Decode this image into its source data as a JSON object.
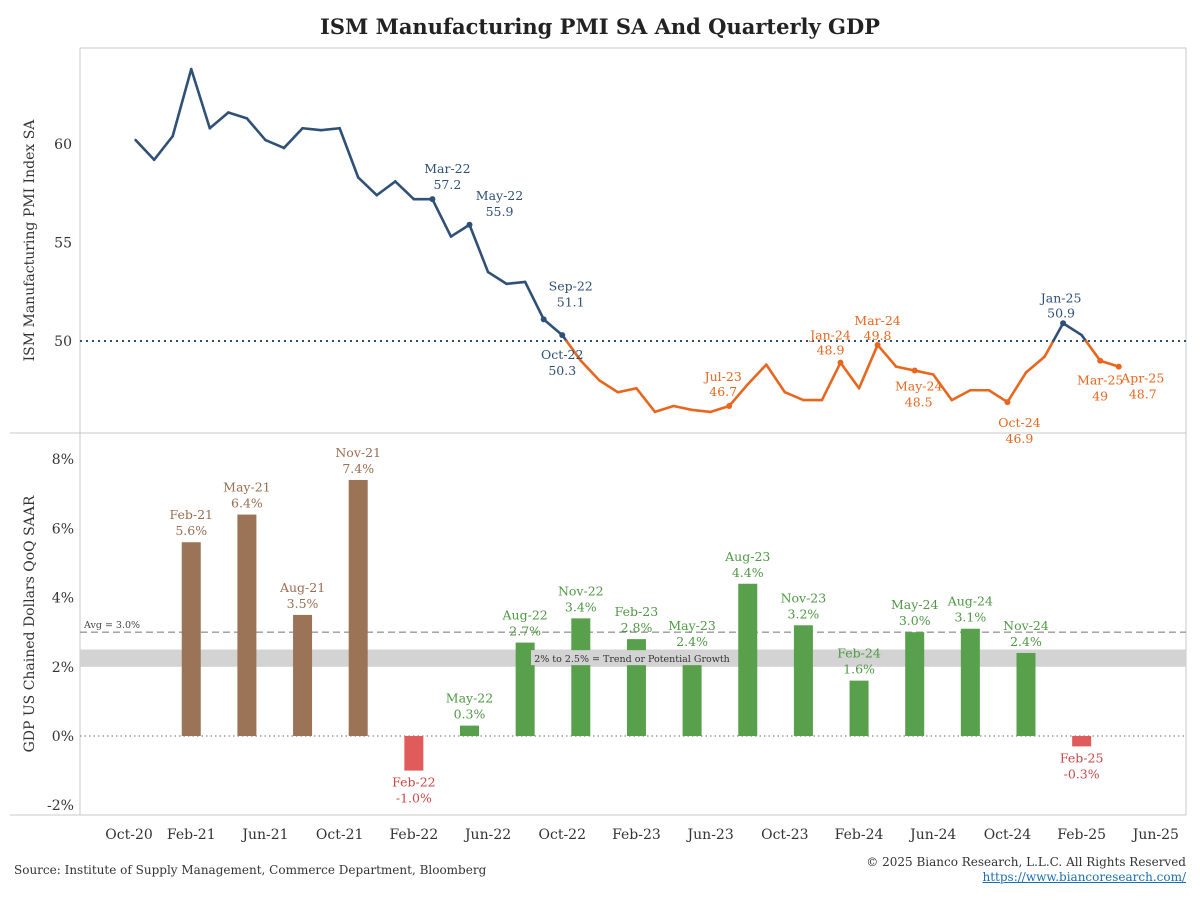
{
  "title": "ISM Manufacturing PMI SA And Quarterly GDP",
  "footer": {
    "source": "Source: Institute of Supply Management, Commerce Department, Bloomberg",
    "copyright": "© 2025 Bianco Research, L.L.C. All Rights Reserved",
    "url": "https://www.biancoresearch.com/"
  },
  "colors": {
    "pmi_above": "#2f5077",
    "pmi_below": "#e8671f",
    "gdp_early": "#9b7458",
    "gdp_late": "#58a04c",
    "gdp_negative": "#e05c5c",
    "reference_line": "#2f5077",
    "band": "#d3d3d3"
  },
  "chart_data": [
    {
      "type": "line",
      "ylabel": "ISM Manufacturing PMI Index SA",
      "ylim": [
        45,
        64.5
      ],
      "yticks": [
        50,
        55,
        60
      ],
      "reference_line": 50,
      "x": [
        "2020-11",
        "2020-12",
        "2021-01",
        "2021-02",
        "2021-03",
        "2021-04",
        "2021-05",
        "2021-06",
        "2021-07",
        "2021-08",
        "2021-09",
        "2021-10",
        "2021-11",
        "2021-12",
        "2022-01",
        "2022-02",
        "2022-03",
        "2022-04",
        "2022-05",
        "2022-06",
        "2022-07",
        "2022-08",
        "2022-09",
        "2022-10",
        "2022-11",
        "2022-12",
        "2023-01",
        "2023-02",
        "2023-03",
        "2023-04",
        "2023-05",
        "2023-06",
        "2023-07",
        "2023-08",
        "2023-09",
        "2023-10",
        "2023-11",
        "2023-12",
        "2024-01",
        "2024-02",
        "2024-03",
        "2024-04",
        "2024-05",
        "2024-06",
        "2024-07",
        "2024-08",
        "2024-09",
        "2024-10",
        "2024-11",
        "2024-12",
        "2025-01",
        "2025-02",
        "2025-03",
        "2025-04"
      ],
      "values": [
        60.2,
        59.2,
        60.4,
        63.8,
        60.8,
        61.6,
        61.3,
        60.2,
        59.8,
        60.8,
        60.7,
        60.8,
        58.3,
        57.4,
        58.1,
        57.2,
        57.2,
        55.3,
        55.9,
        53.5,
        52.9,
        53.0,
        51.1,
        50.3,
        49.0,
        48.0,
        47.4,
        47.6,
        46.4,
        46.7,
        46.5,
        46.4,
        46.7,
        47.8,
        48.8,
        47.4,
        47.0,
        47.0,
        48.9,
        47.6,
        49.8,
        48.7,
        48.5,
        48.3,
        47.0,
        47.5,
        47.5,
        46.9,
        48.4,
        49.2,
        50.9,
        50.3,
        49.0,
        48.7
      ],
      "annotations": [
        {
          "x": "2022-03",
          "month": "Mar-22",
          "value": "57.2"
        },
        {
          "x": "2022-05",
          "month": "May-22",
          "value": "55.9"
        },
        {
          "x": "2022-09",
          "month": "Sep-22",
          "value": "51.1"
        },
        {
          "x": "2022-10",
          "month": "Oct-22",
          "value": "50.3"
        },
        {
          "x": "2023-07",
          "month": "Jul-23",
          "value": "46.7"
        },
        {
          "x": "2024-01",
          "month": "Jan-24",
          "value": "48.9"
        },
        {
          "x": "2024-03",
          "month": "Mar-24",
          "value": "49.8"
        },
        {
          "x": "2024-05",
          "month": "May-24",
          "value": "48.5"
        },
        {
          "x": "2024-10",
          "month": "Oct-24",
          "value": "46.9"
        },
        {
          "x": "2025-01",
          "month": "Jan-25",
          "value": "50.9"
        },
        {
          "x": "2025-03",
          "month": "Mar-25",
          "value": "49"
        },
        {
          "x": "2025-04",
          "month": "Apr-25",
          "value": "48.7"
        }
      ]
    },
    {
      "type": "bar",
      "ylabel": "GDP US Chained Dollars QoQ SAAR",
      "ylim": [
        -2.2,
        8.7
      ],
      "yticks": [
        "-2%",
        "0%",
        "2%",
        "4%",
        "6%",
        "8%"
      ],
      "ytick_values": [
        -2,
        0,
        2,
        4,
        6,
        8
      ],
      "average": {
        "value": 3.0,
        "label": "Avg = 3.0%"
      },
      "band": {
        "from": 2.0,
        "to": 2.5,
        "label": "2% to 2.5% = Trend or Potential Growth"
      },
      "bars": [
        {
          "x": "2021-02",
          "month": "Feb-21",
          "value": 5.6,
          "label": "5.6%"
        },
        {
          "x": "2021-05",
          "month": "May-21",
          "value": 6.4,
          "label": "6.4%"
        },
        {
          "x": "2021-08",
          "month": "Aug-21",
          "value": 3.5,
          "label": "3.5%"
        },
        {
          "x": "2021-11",
          "month": "Nov-21",
          "value": 7.4,
          "label": "7.4%"
        },
        {
          "x": "2022-02",
          "month": "Feb-22",
          "value": -1.0,
          "label": "-1.0%"
        },
        {
          "x": "2022-05",
          "month": "May-22",
          "value": 0.3,
          "label": "0.3%"
        },
        {
          "x": "2022-08",
          "month": "Aug-22",
          "value": 2.7,
          "label": "2.7%"
        },
        {
          "x": "2022-11",
          "month": "Nov-22",
          "value": 3.4,
          "label": "3.4%"
        },
        {
          "x": "2023-02",
          "month": "Feb-23",
          "value": 2.8,
          "label": "2.8%"
        },
        {
          "x": "2023-05",
          "month": "May-23",
          "value": 2.4,
          "label": "2.4%"
        },
        {
          "x": "2023-08",
          "month": "Aug-23",
          "value": 4.4,
          "label": "4.4%"
        },
        {
          "x": "2023-11",
          "month": "Nov-23",
          "value": 3.2,
          "label": "3.2%"
        },
        {
          "x": "2024-02",
          "month": "Feb-24",
          "value": 1.6,
          "label": "1.6%"
        },
        {
          "x": "2024-05",
          "month": "May-24",
          "value": 3.0,
          "label": "3.0%"
        },
        {
          "x": "2024-08",
          "month": "Aug-24",
          "value": 3.1,
          "label": "3.1%"
        },
        {
          "x": "2024-11",
          "month": "Nov-24",
          "value": 2.4,
          "label": "2.4%"
        },
        {
          "x": "2025-02",
          "month": "Feb-25",
          "value": -0.3,
          "label": "-0.3%"
        }
      ]
    }
  ],
  "x_axis": {
    "ticks": [
      {
        "x": "2020-10",
        "label": "Oct-20"
      },
      {
        "x": "2021-02",
        "label": "Feb-21"
      },
      {
        "x": "2021-06",
        "label": "Jun-21"
      },
      {
        "x": "2021-10",
        "label": "Oct-21"
      },
      {
        "x": "2022-02",
        "label": "Feb-22"
      },
      {
        "x": "2022-06",
        "label": "Jun-22"
      },
      {
        "x": "2022-10",
        "label": "Oct-22"
      },
      {
        "x": "2023-02",
        "label": "Feb-23"
      },
      {
        "x": "2023-06",
        "label": "Jun-23"
      },
      {
        "x": "2023-10",
        "label": "Oct-23"
      },
      {
        "x": "2024-02",
        "label": "Feb-24"
      },
      {
        "x": "2024-06",
        "label": "Jun-24"
      },
      {
        "x": "2024-10",
        "label": "Oct-24"
      },
      {
        "x": "2025-02",
        "label": "Feb-25"
      },
      {
        "x": "2025-06",
        "label": "Jun-25"
      }
    ]
  }
}
